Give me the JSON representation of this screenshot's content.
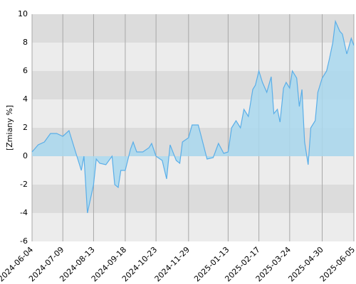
{
  "chart_data": {
    "type": "area",
    "y_label": "[Zmiany %]",
    "color": "#5aaee8",
    "fill": "#a9d8ee",
    "xlim": [
      "2024-06-04",
      "2025-06-05"
    ],
    "xticks": [
      "2024-06-04",
      "2024-07-09",
      "2024-08-13",
      "2024-09-18",
      "2024-10-23",
      "2024-11-29",
      "2025-01-13",
      "2025-02-17",
      "2025-03-24",
      "2025-04-30",
      "2025-06-05"
    ],
    "ylim": [
      -6,
      10
    ],
    "yticks": [
      -6,
      -4,
      -2,
      0,
      2,
      4,
      6,
      8,
      10
    ],
    "grid": true,
    "x": [
      "2024-06-04",
      "2024-06-11",
      "2024-06-18",
      "2024-06-25",
      "2024-07-02",
      "2024-07-09",
      "2024-07-16",
      "2024-07-23",
      "2024-07-30",
      "2024-08-02",
      "2024-08-06",
      "2024-08-13",
      "2024-08-16",
      "2024-08-20",
      "2024-08-27",
      "2024-09-03",
      "2024-09-06",
      "2024-09-10",
      "2024-09-13",
      "2024-09-18",
      "2024-09-24",
      "2024-09-27",
      "2024-10-01",
      "2024-10-08",
      "2024-10-15",
      "2024-10-18",
      "2024-10-23",
      "2024-10-30",
      "2024-11-04",
      "2024-11-08",
      "2024-11-15",
      "2024-11-19",
      "2024-11-22",
      "2024-11-29",
      "2024-12-03",
      "2024-12-10",
      "2024-12-13",
      "2024-12-20",
      "2024-12-27",
      "2025-01-02",
      "2025-01-08",
      "2025-01-13",
      "2025-01-17",
      "2025-01-22",
      "2025-01-27",
      "2025-01-31",
      "2025-02-05",
      "2025-02-10",
      "2025-02-13",
      "2025-02-17",
      "2025-02-21",
      "2025-02-26",
      "2025-03-03",
      "2025-03-06",
      "2025-03-10",
      "2025-03-13",
      "2025-03-17",
      "2025-03-20",
      "2025-03-24",
      "2025-03-27",
      "2025-04-01",
      "2025-04-04",
      "2025-04-07",
      "2025-04-10",
      "2025-04-14",
      "2025-04-17",
      "2025-04-22",
      "2025-04-25",
      "2025-04-30",
      "2025-05-05",
      "2025-05-08",
      "2025-05-12",
      "2025-05-15",
      "2025-05-20",
      "2025-05-23",
      "2025-05-28",
      "2025-06-02",
      "2025-06-05"
    ],
    "values": [
      0.3,
      0.8,
      1.0,
      1.6,
      1.6,
      1.4,
      1.8,
      0.4,
      -1.0,
      0.0,
      -4.0,
      -2.0,
      -0.2,
      -0.5,
      -0.6,
      0.0,
      -2.0,
      -2.2,
      -1.0,
      -1.0,
      0.5,
      1.0,
      0.3,
      0.3,
      0.6,
      0.9,
      0.0,
      -0.3,
      -1.6,
      0.8,
      -0.3,
      -0.5,
      1.0,
      1.3,
      2.2,
      2.2,
      1.5,
      -0.2,
      -0.1,
      0.9,
      0.2,
      0.3,
      2.0,
      2.5,
      2.0,
      3.3,
      2.8,
      4.7,
      5.0,
      6.0,
      5.2,
      4.5,
      5.6,
      3.0,
      3.3,
      2.4,
      4.8,
      5.2,
      4.8,
      6.0,
      5.5,
      3.5,
      4.7,
      1.0,
      -0.6,
      2.0,
      2.5,
      4.5,
      5.5,
      6.0,
      6.8,
      8.0,
      9.5,
      8.8,
      8.6,
      7.2,
      8.3,
      7.8
    ]
  }
}
